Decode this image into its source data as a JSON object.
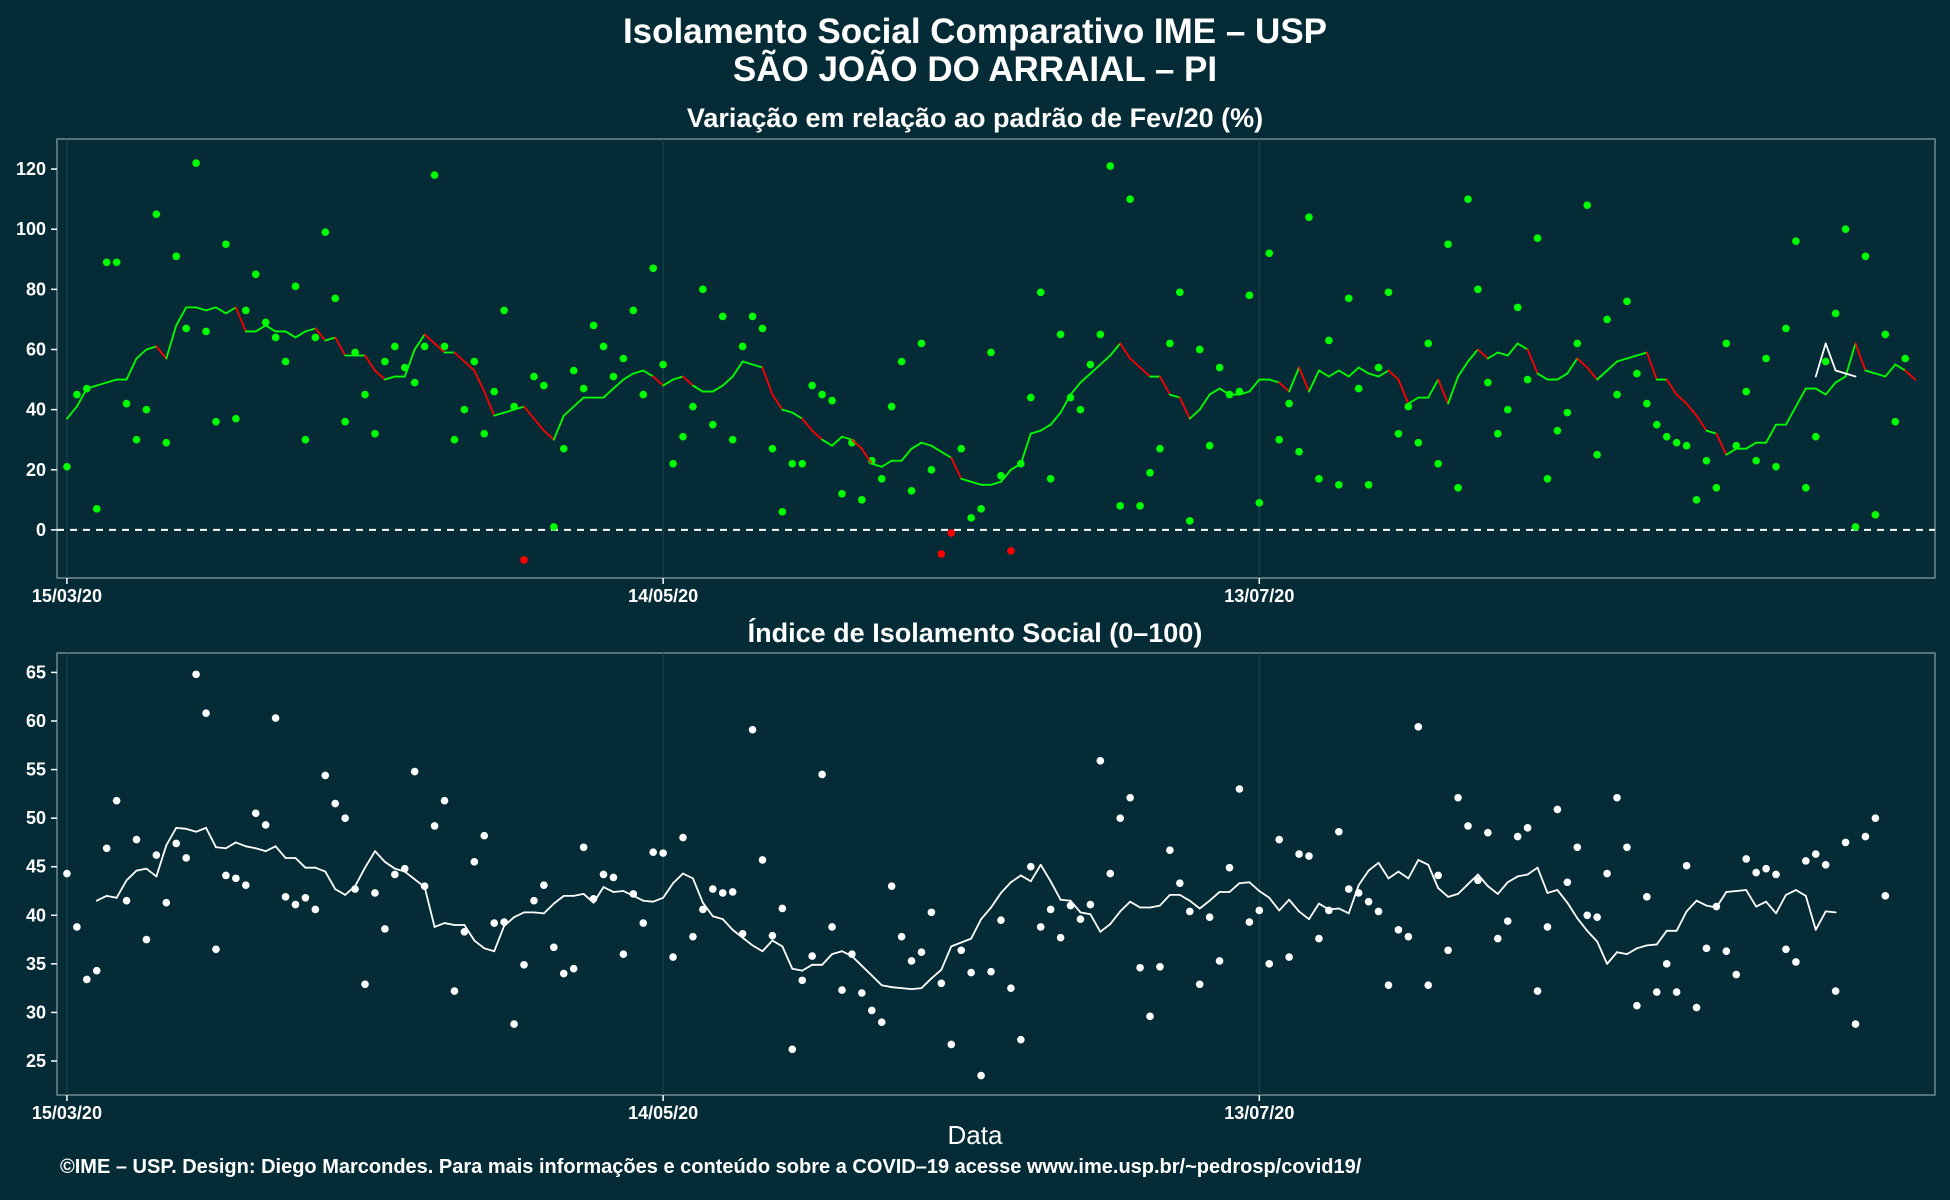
{
  "title_line1": "Isolamento Social Comparativo IME – USP",
  "title_line2": "SÃO JOÃO DO ARRAIAL – PI",
  "xlabel": "Data",
  "caption": "©IME – USP. Design: Diego Marcondes. Para mais informações e conteúdo sobre a COVID–19 acesse www.ime.usp.br/~pedrosp/covid19/",
  "colors": {
    "background": "#052c36",
    "positive": "#00ff00",
    "negative": "#ff0000",
    "index": "#ffffff",
    "projection": "#ffffff",
    "reference": "#ffffff"
  },
  "chart_data": [
    {
      "type": "scatter",
      "title": "Variação em relação ao padrão de Fev/20 (%)",
      "x_tick_labels": [
        "15/03/20",
        "14/05/20",
        "13/07/20"
      ],
      "x_tick_days": [
        0,
        60,
        120
      ],
      "x_range_days": [
        -1,
        188
      ],
      "ylim": [
        -16,
        130
      ],
      "y_ticks": [
        0,
        20,
        40,
        60,
        80,
        100,
        120
      ],
      "reference_line": 0,
      "grid": true,
      "series": [
        {
          "kind": "daily",
          "values": [
            21,
            45,
            47,
            7,
            89,
            89,
            42,
            30,
            40,
            105,
            29,
            91,
            67,
            122,
            66,
            36,
            95,
            37,
            73,
            85,
            69,
            64,
            56,
            81,
            30,
            64,
            99,
            77,
            36,
            59,
            45,
            32,
            56,
            61,
            54,
            49,
            61,
            118,
            61,
            30,
            40,
            56,
            32,
            46,
            73,
            41,
            -10,
            51,
            48,
            1,
            27,
            53,
            47,
            68,
            61,
            51,
            57,
            73,
            45,
            87,
            55,
            22,
            31,
            41,
            80,
            35,
            71,
            30,
            61,
            71,
            67,
            27,
            6,
            22,
            22,
            48,
            45,
            43,
            12,
            29,
            10,
            23,
            17,
            41,
            56,
            13,
            62,
            20,
            -8,
            -1,
            27,
            4,
            7,
            59,
            18,
            -7,
            22,
            44,
            79,
            17,
            65,
            44,
            40,
            55,
            65,
            121,
            8,
            110,
            8,
            19,
            27,
            62,
            79,
            3,
            60,
            28,
            54,
            45,
            46,
            78,
            9,
            92,
            30,
            42,
            26,
            104,
            17,
            63,
            15,
            77,
            47,
            15,
            54,
            79,
            32,
            41,
            29,
            62,
            22,
            95,
            14,
            110,
            80,
            49,
            32,
            40,
            74,
            50,
            97,
            17,
            33,
            39,
            62,
            108,
            25,
            70,
            45,
            76,
            52,
            42,
            35,
            31,
            29,
            28,
            10,
            23,
            14,
            62,
            28,
            46,
            23,
            57,
            21,
            67,
            96,
            14,
            31,
            56,
            72,
            100,
            1,
            91,
            5,
            65,
            36,
            57
          ]
        },
        {
          "kind": "moving_average",
          "start_day": 0,
          "values": [
            37,
            41,
            47,
            48,
            49,
            50,
            50,
            57,
            60,
            61,
            57,
            68,
            74,
            74,
            73,
            74,
            72,
            74,
            66,
            66,
            68,
            66,
            66,
            64,
            66,
            67,
            63,
            64,
            58,
            58,
            58,
            53,
            50,
            51,
            51,
            60,
            65,
            62,
            59,
            59,
            56,
            53,
            46,
            38,
            39,
            40,
            41,
            37,
            33,
            30,
            38,
            41,
            44,
            44,
            44,
            47,
            50,
            52,
            53,
            51,
            48,
            50,
            51,
            48,
            46,
            46,
            48,
            51,
            56,
            55,
            54,
            45,
            40,
            39,
            37,
            33,
            30,
            28,
            31,
            30,
            27,
            22,
            21,
            23,
            23,
            27,
            29,
            28,
            26,
            24,
            17,
            16,
            15,
            15,
            16,
            20,
            22,
            32,
            33,
            35,
            39,
            45,
            49,
            52,
            55,
            58,
            62,
            57,
            54,
            51,
            51,
            45,
            44,
            37,
            40,
            45,
            47,
            45,
            45,
            46,
            50,
            50,
            49,
            46,
            54,
            46,
            53,
            51,
            53,
            51,
            54,
            52,
            51,
            53,
            50,
            42,
            44,
            44,
            50,
            42,
            51,
            56,
            60,
            57,
            59,
            58,
            62,
            60,
            52,
            50,
            50,
            52,
            57,
            54,
            50,
            53,
            56,
            57,
            58,
            59,
            50,
            50,
            45,
            42,
            38,
            33,
            32,
            25,
            27,
            27,
            29,
            29,
            35,
            35,
            41,
            47,
            47,
            45,
            49,
            51,
            62,
            53,
            52,
            51,
            55,
            53,
            50
          ]
        },
        {
          "kind": "moving_average_recent",
          "start_day": 176,
          "values": [
            51,
            62,
            53,
            52,
            51
          ]
        }
      ]
    },
    {
      "type": "scatter",
      "title": "Índice de Isolamento Social (0–100)",
      "x_tick_labels": [
        "15/03/20",
        "14/05/20",
        "13/07/20"
      ],
      "x_tick_days": [
        0,
        60,
        120
      ],
      "x_range_days": [
        -1,
        188
      ],
      "ylim": [
        21.5,
        67
      ],
      "y_ticks": [
        25,
        30,
        35,
        40,
        45,
        50,
        55,
        60,
        65
      ],
      "grid": true,
      "series": [
        {
          "kind": "daily",
          "values": [
            44.3,
            38.8,
            33.4,
            34.3,
            46.9,
            51.8,
            41.5,
            47.8,
            37.5,
            46.2,
            41.3,
            47.4,
            45.9,
            64.8,
            60.8,
            36.5,
            44.1,
            43.8,
            43.1,
            50.5,
            49.3,
            60.3,
            41.9,
            41.1,
            41.8,
            40.6,
            54.4,
            51.5,
            50.0,
            42.7,
            32.9,
            42.3,
            38.6,
            44.2,
            44.8,
            54.8,
            43.0,
            49.2,
            51.8,
            32.2,
            38.3,
            45.5,
            48.2,
            39.2,
            39.3,
            28.8,
            34.9,
            41.5,
            43.1,
            36.7,
            34.0,
            34.5,
            47.0,
            41.7,
            44.2,
            43.9,
            36.0,
            42.2,
            39.2,
            46.5,
            46.4,
            35.7,
            48.0,
            37.8,
            40.6,
            42.7,
            42.3,
            42.4,
            38.1,
            59.1,
            45.7,
            37.9,
            40.7,
            26.2,
            33.3,
            35.8,
            54.5,
            38.8,
            32.3,
            36.0,
            32.0,
            30.2,
            29.0,
            43.0,
            37.8,
            35.3,
            36.2,
            40.3,
            33.0,
            26.7,
            36.4,
            34.1,
            23.5,
            34.2,
            39.5,
            32.5,
            27.2,
            45.0,
            38.8,
            40.6,
            37.7,
            41.0,
            39.6,
            41.1,
            55.9,
            44.3,
            50.0,
            52.1,
            34.6,
            29.6,
            34.7,
            46.7,
            43.3,
            40.4,
            32.9,
            39.8,
            35.3,
            44.9,
            53.0,
            39.3,
            40.5,
            35.0,
            47.8,
            35.7,
            46.3,
            46.1,
            37.6,
            40.5,
            48.6,
            42.7,
            42.3,
            41.4,
            40.4,
            32.8,
            38.5,
            37.8,
            59.4,
            32.8,
            44.1,
            36.4,
            52.1,
            49.2,
            43.6,
            48.5,
            37.6,
            39.4,
            48.1,
            49.0,
            32.2,
            38.8,
            50.9,
            43.4,
            47.0,
            40.0,
            39.8,
            44.3,
            52.1,
            47.0,
            30.7,
            41.9,
            32.1,
            35.0,
            32.1,
            45.1,
            30.5,
            36.6,
            40.9,
            36.3,
            33.9,
            45.8,
            44.4,
            44.8,
            44.2,
            36.5,
            35.2,
            45.6,
            46.3,
            45.2,
            32.2,
            47.5,
            28.8,
            48.1,
            50.0,
            42.0
          ]
        },
        {
          "kind": "moving_average",
          "start_day": 3,
          "values": [
            41.5,
            42.0,
            41.8,
            43.6,
            44.6,
            44.8,
            44.0,
            47.2,
            49.0,
            48.9,
            48.6,
            49.0,
            47.0,
            46.9,
            47.5,
            47.1,
            46.9,
            46.6,
            47.1,
            45.9,
            45.9,
            44.9,
            44.9,
            44.5,
            42.7,
            42.1,
            43.0,
            44.9,
            46.6,
            45.5,
            44.8,
            44.5,
            43.7,
            42.9,
            38.8,
            39.2,
            39.0,
            39.0,
            37.4,
            36.6,
            36.3,
            38.9,
            39.8,
            40.3,
            40.3,
            40.2,
            41.2,
            42.0,
            42.0,
            42.2,
            41.3,
            42.9,
            42.4,
            42.5,
            42.0,
            41.5,
            41.4,
            41.8,
            43.3,
            44.3,
            43.8,
            41.3,
            39.9,
            39.6,
            38.5,
            37.7,
            36.9,
            36.3,
            37.4,
            36.8,
            34.5,
            34.3,
            34.9,
            34.9,
            36.0,
            36.3,
            35.8,
            34.8,
            33.8,
            32.8,
            32.6,
            32.5,
            32.4,
            32.5,
            33.5,
            34.4,
            36.8,
            37.2,
            37.6,
            39.6,
            40.8,
            42.3,
            43.4,
            44.1,
            43.5,
            45.2,
            43.5,
            41.6,
            41.5,
            40.3,
            40.1,
            38.3,
            39.1,
            40.4,
            41.4,
            40.8,
            40.8,
            41.0,
            42.1,
            42.1,
            41.5,
            40.7,
            41.5,
            42.4,
            42.4,
            43.3,
            43.4,
            42.5,
            41.8,
            40.5,
            41.6,
            40.4,
            39.6,
            41.2,
            40.6,
            40.7,
            40.2,
            43.1,
            44.6,
            45.4,
            43.8,
            44.5,
            43.8,
            45.7,
            45.2,
            42.8,
            41.9,
            42.2,
            43.2,
            44.2,
            43.0,
            42.2,
            43.4,
            44.0,
            44.2,
            44.9,
            42.3,
            42.6,
            41.3,
            39.7,
            38.4,
            37.3,
            35.0,
            36.2,
            36.0,
            36.6,
            36.9,
            37.0,
            38.4,
            38.4,
            40.4,
            41.5,
            41.0,
            40.8,
            42.4,
            42.5,
            42.6,
            40.9,
            41.4,
            40.2,
            42.1,
            42.6,
            42.0,
            38.5,
            40.4,
            40.3
          ]
        }
      ]
    }
  ]
}
